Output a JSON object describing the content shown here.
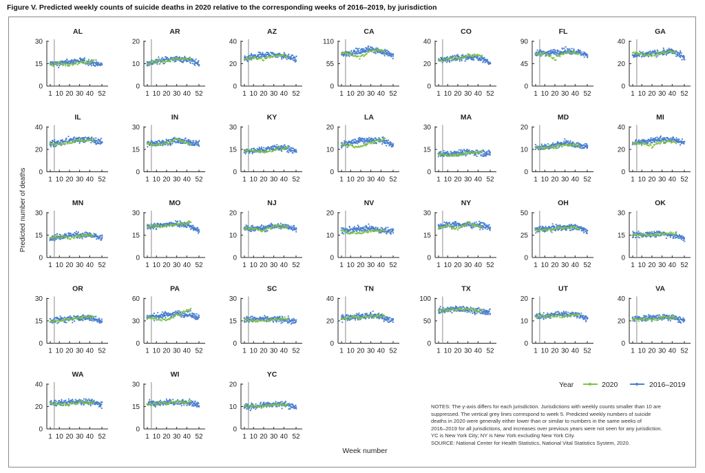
{
  "title": "Figure V. Predicted weekly counts of suicide deaths in 2020 relative to the corresponding weeks of 2016–2019, by jurisdiction",
  "ylabel": "Predicted number of deaths",
  "xlabel": "Week number",
  "legend": {
    "title": "Year",
    "items": [
      {
        "label": "2020",
        "color": "#7dc242"
      },
      {
        "label": "2016–2019",
        "color": "#4a7fd0"
      }
    ]
  },
  "notes": [
    "NOTES: The y-axis differs for each jurisdiction. Jurisdictions with weekly counts smaller than 10 are",
    "suppressed. The vertical grey lines correspond to week 5. Predicted weekly numbers of suicide",
    "deaths in 2020 were generally either lower than or similar to numbers in the same weeks of",
    "2016–2019 for all jurisdictions, and increases over previous years were not seen for any jurisdiction.",
    "YC is New York City; NY is New York excluding New York City.",
    "SOURCE: National Center for Health Statistics, National Vital Statistics System, 2020."
  ],
  "chart_data": {
    "type": "scatter",
    "x_ticks": [
      1,
      10,
      20,
      30,
      40,
      52
    ],
    "reference_week": 5,
    "series_weeks": {
      "2016–2019": [
        1,
        10,
        20,
        30,
        40,
        52
      ],
      "2020": [
        1,
        10,
        20,
        30,
        40,
        44
      ]
    },
    "panels": [
      {
        "name": "AL",
        "yticks": [
          0,
          15,
          30
        ],
        "trend_2016_2019": [
          15,
          15,
          16,
          17,
          16,
          14
        ],
        "trend_2020": [
          15,
          15,
          14,
          16,
          16,
          17
        ]
      },
      {
        "name": "AR",
        "yticks": [
          0,
          10,
          20
        ],
        "trend_2016_2019": [
          10,
          11,
          12,
          12,
          12,
          10
        ],
        "trend_2020": [
          10,
          11,
          11,
          12,
          12,
          12
        ]
      },
      {
        "name": "AZ",
        "yticks": [
          0,
          20,
          40
        ],
        "trend_2016_2019": [
          24,
          26,
          28,
          28,
          27,
          24
        ],
        "trend_2020": [
          24,
          25,
          24,
          27,
          27,
          27
        ]
      },
      {
        "name": "CA",
        "yticks": [
          0,
          55,
          110
        ],
        "trend_2016_2019": [
          78,
          82,
          85,
          92,
          85,
          75
        ],
        "trend_2020": [
          82,
          78,
          70,
          88,
          88,
          82
        ]
      },
      {
        "name": "CO",
        "yticks": [
          0,
          20,
          40
        ],
        "trend_2016_2019": [
          23,
          24,
          25,
          26,
          26,
          20
        ],
        "trend_2020": [
          23,
          24,
          25,
          27,
          28,
          27
        ]
      },
      {
        "name": "FL",
        "yticks": [
          0,
          45,
          90
        ],
        "trend_2016_2019": [
          65,
          67,
          68,
          70,
          70,
          62
        ],
        "trend_2020": [
          65,
          66,
          55,
          67,
          67,
          64
        ]
      },
      {
        "name": "GA",
        "yticks": [
          0,
          20,
          40
        ],
        "trend_2016_2019": [
          27,
          28,
          29,
          30,
          31,
          26
        ],
        "trend_2020": [
          30,
          28,
          28,
          30,
          31,
          31
        ]
      },
      {
        "name": "IL",
        "yticks": [
          0,
          20,
          40
        ],
        "trend_2016_2019": [
          25,
          26,
          28,
          29,
          29,
          26
        ],
        "trend_2020": [
          25,
          25,
          26,
          28,
          28,
          28
        ]
      },
      {
        "name": "IN",
        "yticks": [
          0,
          15,
          30
        ],
        "trend_2016_2019": [
          19,
          19,
          20,
          21,
          20,
          19
        ],
        "trend_2020": [
          19,
          18,
          19,
          22,
          19,
          18
        ]
      },
      {
        "name": "KY",
        "yticks": [
          0,
          15,
          30
        ],
        "trend_2016_2019": [
          14,
          14,
          15,
          16,
          16,
          14
        ],
        "trend_2020": [
          14,
          14,
          13,
          15,
          16,
          16
        ]
      },
      {
        "name": "LA",
        "yticks": [
          0,
          10,
          20
        ],
        "trend_2016_2019": [
          12,
          13,
          14,
          14,
          14,
          12
        ],
        "trend_2020": [
          12,
          12,
          11,
          13,
          14,
          15
        ]
      },
      {
        "name": "MA",
        "yticks": [
          0,
          15,
          30
        ],
        "trend_2016_2019": [
          12,
          12,
          13,
          13,
          13,
          12
        ],
        "trend_2020": [
          12,
          11,
          11,
          13,
          13,
          13
        ]
      },
      {
        "name": "MD",
        "yticks": [
          0,
          10,
          20
        ],
        "trend_2016_2019": [
          11,
          11,
          12,
          13,
          12,
          11
        ],
        "trend_2020": [
          11,
          11,
          11,
          12,
          12,
          12
        ]
      },
      {
        "name": "MI",
        "yticks": [
          0,
          20,
          40
        ],
        "trend_2016_2019": [
          26,
          27,
          28,
          29,
          29,
          26
        ],
        "trend_2020": [
          25,
          25,
          23,
          27,
          27,
          27
        ]
      },
      {
        "name": "MN",
        "yticks": [
          0,
          15,
          30
        ],
        "trend_2016_2019": [
          13,
          14,
          15,
          15,
          15,
          13
        ],
        "trend_2020": [
          13,
          14,
          13,
          14,
          15,
          15
        ]
      },
      {
        "name": "MO",
        "yticks": [
          0,
          15,
          30
        ],
        "trend_2016_2019": [
          21,
          21,
          22,
          23,
          22,
          18
        ],
        "trend_2020": [
          21,
          21,
          21,
          22,
          23,
          24
        ]
      },
      {
        "name": "NJ",
        "yticks": [
          0,
          10,
          20
        ],
        "trend_2016_2019": [
          13,
          13,
          13,
          14,
          14,
          13
        ],
        "trend_2020": [
          13,
          13,
          12,
          14,
          14,
          14
        ]
      },
      {
        "name": "NV",
        "yticks": [
          0,
          10,
          20
        ],
        "trend_2016_2019": [
          12,
          12,
          13,
          13,
          12,
          12
        ],
        "trend_2020": [
          12,
          11,
          11,
          12,
          12,
          12
        ]
      },
      {
        "name": "NY",
        "yticks": [
          0,
          15,
          30
        ],
        "trend_2016_2019": [
          21,
          22,
          22,
          22,
          22,
          20
        ],
        "trend_2020": [
          20,
          21,
          19,
          23,
          21,
          20
        ]
      },
      {
        "name": "OH",
        "yticks": [
          0,
          25,
          50
        ],
        "trend_2016_2019": [
          31,
          32,
          33,
          34,
          34,
          30
        ],
        "trend_2020": [
          30,
          31,
          32,
          34,
          33,
          33
        ]
      },
      {
        "name": "OK",
        "yticks": [
          0,
          15,
          30
        ],
        "trend_2016_2019": [
          15,
          15,
          16,
          16,
          15,
          13
        ],
        "trend_2020": [
          15,
          15,
          15,
          16,
          16,
          16
        ]
      },
      {
        "name": "OR",
        "yticks": [
          0,
          15,
          30
        ],
        "trend_2016_2019": [
          15,
          16,
          16,
          17,
          17,
          15
        ],
        "trend_2020": [
          15,
          15,
          16,
          17,
          18,
          18
        ]
      },
      {
        "name": "PA",
        "yticks": [
          0,
          30,
          60
        ],
        "trend_2016_2019": [
          35,
          36,
          38,
          40,
          39,
          35
        ],
        "trend_2020": [
          35,
          33,
          30,
          38,
          44,
          45
        ]
      },
      {
        "name": "SC",
        "yticks": [
          0,
          15,
          30
        ],
        "trend_2016_2019": [
          16,
          16,
          16,
          16,
          16,
          14
        ],
        "trend_2020": [
          16,
          15,
          15,
          16,
          16,
          16
        ]
      },
      {
        "name": "TN",
        "yticks": [
          0,
          20,
          40
        ],
        "trend_2016_2019": [
          23,
          23,
          24,
          25,
          24,
          20
        ],
        "trend_2020": [
          22,
          23,
          23,
          24,
          25,
          25
        ]
      },
      {
        "name": "TX",
        "yticks": [
          0,
          50,
          100
        ],
        "trend_2016_2019": [
          72,
          75,
          77,
          76,
          72,
          68
        ],
        "trend_2020": [
          72,
          73,
          76,
          77,
          74,
          74
        ]
      },
      {
        "name": "UT",
        "yticks": [
          0,
          10,
          20
        ],
        "trend_2016_2019": [
          12,
          12,
          13,
          13,
          13,
          11
        ],
        "trend_2020": [
          12,
          12,
          12,
          12,
          13,
          13
        ]
      },
      {
        "name": "VA",
        "yticks": [
          0,
          20,
          40
        ],
        "trend_2016_2019": [
          22,
          22,
          23,
          23,
          23,
          20
        ],
        "trend_2020": [
          22,
          21,
          21,
          23,
          23,
          23
        ]
      },
      {
        "name": "WA",
        "yticks": [
          0,
          20,
          40
        ],
        "trend_2016_2019": [
          23,
          23,
          24,
          25,
          24,
          22
        ],
        "trend_2020": [
          23,
          22,
          22,
          24,
          24,
          24
        ]
      },
      {
        "name": "WI",
        "yticks": [
          0,
          15,
          30
        ],
        "trend_2016_2019": [
          17,
          17,
          18,
          18,
          18,
          16
        ],
        "trend_2020": [
          17,
          17,
          17,
          18,
          18,
          18
        ]
      },
      {
        "name": "YC",
        "yticks": [
          0,
          10,
          20
        ],
        "trend_2016_2019": [
          10,
          10,
          11,
          11,
          11,
          10
        ],
        "trend_2020": [
          10,
          10,
          10,
          11,
          11,
          11
        ]
      }
    ]
  }
}
